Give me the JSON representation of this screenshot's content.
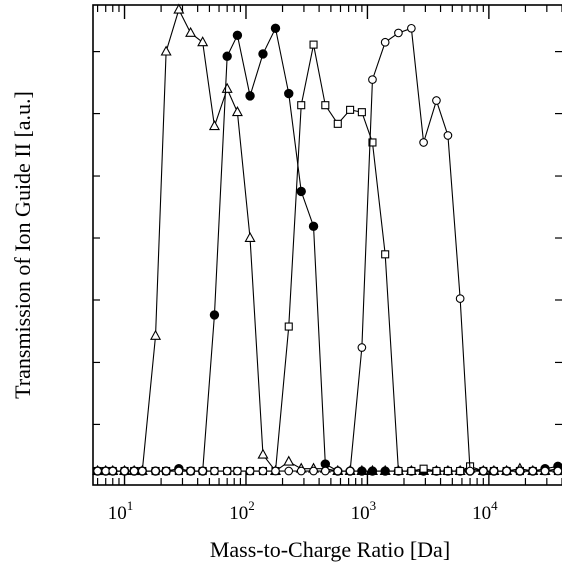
{
  "chart_data": {
    "type": "line",
    "title": "",
    "xlabel": "Mass-to-Charge Ratio [Da]",
    "ylabel": "Transmission of Ion Guide II [a.u.]",
    "x_scale": "log",
    "xlim": [
      5.5,
      40000
    ],
    "ylim": [
      -0.03,
      1.0
    ],
    "x_major_ticks": [
      {
        "value": 10,
        "base": "10",
        "exp": "1"
      },
      {
        "value": 100,
        "base": "10",
        "exp": "2"
      },
      {
        "value": 1000,
        "base": "10",
        "exp": "3"
      },
      {
        "value": 10000,
        "base": "10",
        "exp": "4"
      }
    ],
    "y_ticks": [
      0.1,
      0.233,
      0.367,
      0.5,
      0.633,
      0.767,
      0.9
    ],
    "y_tick_labels_shown": false,
    "legend": "none",
    "grid": false,
    "series": [
      {
        "marker": "triangle-open",
        "x": [
          6,
          7,
          8,
          10,
          12,
          14,
          18,
          22,
          28,
          35,
          44,
          55,
          70,
          85,
          108,
          138,
          175,
          225,
          285,
          360,
          450,
          570,
          720,
          900,
          1100,
          1400,
          1800,
          2300,
          2900,
          3700,
          4600,
          5800,
          7000,
          9000,
          11000,
          14000,
          18000,
          23000,
          29000,
          37000
        ],
        "y": [
          0.0,
          0.0,
          0.0,
          0.0,
          0.0,
          0.0,
          0.29,
          0.9,
          0.99,
          0.94,
          0.92,
          0.74,
          0.82,
          0.77,
          0.5,
          0.035,
          0.0,
          0.02,
          0.005,
          0.005,
          0.005,
          0.0,
          0.0,
          0.0,
          0.0,
          0.0,
          0.0,
          0.0,
          0.0,
          0.0,
          0.0,
          0.0,
          0.005,
          0.0,
          0.0,
          0.0,
          0.005,
          0.0,
          0.0,
          0.005
        ]
      },
      {
        "marker": "circle-filled",
        "x": [
          6,
          7,
          8,
          10,
          12,
          14,
          18,
          22,
          28,
          35,
          44,
          55,
          70,
          85,
          108,
          138,
          175,
          225,
          285,
          360,
          450,
          570,
          720,
          900,
          1100,
          1400,
          1800,
          2300,
          2900,
          3700,
          4600,
          5800,
          7000,
          9000,
          11000,
          14000,
          18000,
          23000,
          29000,
          37000
        ],
        "y": [
          0.0,
          0.0,
          0.0,
          0.0,
          0.0,
          0.0,
          0.0,
          0.0,
          0.005,
          0.0,
          0.0,
          0.335,
          0.89,
          0.935,
          0.805,
          0.895,
          0.95,
          0.81,
          0.6,
          0.525,
          0.015,
          0.0,
          0.0,
          0.0,
          0.0,
          0.0,
          0.0,
          0.0,
          0.0,
          0.0,
          0.0,
          0.0,
          0.0,
          0.0,
          0.0,
          0.0,
          0.0,
          0.0,
          0.005,
          0.01
        ]
      },
      {
        "marker": "square-open",
        "x": [
          6,
          7,
          8,
          10,
          12,
          14,
          18,
          22,
          28,
          35,
          44,
          55,
          70,
          85,
          108,
          138,
          175,
          225,
          285,
          360,
          450,
          570,
          720,
          900,
          1100,
          1400,
          1800,
          2300,
          2900,
          3700,
          4600,
          5800,
          7000,
          9000,
          11000,
          14000,
          18000,
          23000,
          29000,
          37000
        ],
        "y": [
          0.0,
          0.0,
          0.0,
          0.0,
          0.0,
          0.0,
          0.0,
          0.0,
          0.0,
          0.0,
          0.0,
          0.0,
          0.0,
          0.0,
          0.0,
          0.0,
          0.0,
          0.31,
          0.785,
          0.915,
          0.785,
          0.745,
          0.775,
          0.77,
          0.705,
          0.465,
          0.0,
          0.0,
          0.005,
          0.0,
          0.0,
          0.0,
          0.01,
          0.0,
          0.0,
          0.0,
          0.0,
          0.0,
          0.0,
          0.0
        ]
      },
      {
        "marker": "circle-open",
        "x": [
          6,
          7,
          8,
          10,
          12,
          14,
          18,
          22,
          28,
          35,
          44,
          55,
          70,
          85,
          108,
          138,
          175,
          225,
          285,
          360,
          450,
          570,
          720,
          900,
          1100,
          1400,
          1800,
          2300,
          2900,
          3700,
          4600,
          5800,
          7000,
          9000,
          11000,
          14000,
          18000,
          23000,
          29000,
          37000
        ],
        "y": [
          0.0,
          0.0,
          0.0,
          0.0,
          0.0,
          0.0,
          0.0,
          0.0,
          0.0,
          0.0,
          0.0,
          0.0,
          0.0,
          0.0,
          0.0,
          0.0,
          0.0,
          0.0,
          0.0,
          0.0,
          0.0,
          0.0,
          0.0,
          0.265,
          0.84,
          0.92,
          0.94,
          0.95,
          0.705,
          0.795,
          0.72,
          0.37,
          0.0,
          0.0,
          0.0,
          0.0,
          0.0,
          0.0,
          0.0,
          0.0
        ]
      }
    ]
  }
}
